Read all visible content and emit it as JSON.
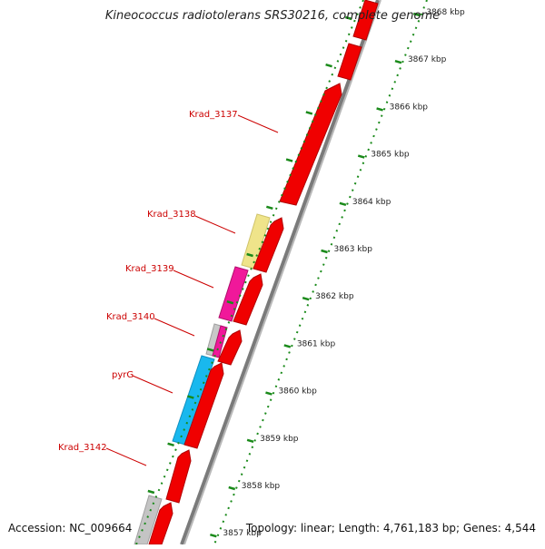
{
  "title": "Kineococcus radiotolerans SRS30216, complete genome",
  "footer": {
    "accession": "Accession: NC_009664",
    "summary": "Topology: linear; Length: 4,761,183 bp; Genes: 4,544"
  },
  "scale_unit": "kbp",
  "ruler_ticks": [
    "3868 kbp",
    "3867 kbp",
    "3866 kbp",
    "3865 kbp",
    "3864 kbp",
    "3863 kbp",
    "3862 kbp",
    "3861 kbp",
    "3860 kbp",
    "3859 kbp",
    "3858 kbp",
    "3857 kbp"
  ],
  "gene_labels": [
    "Krad_3137",
    "Krad_3138",
    "Krad_3139",
    "Krad_3140",
    "pyrG",
    "Krad_3142"
  ],
  "colors": {
    "cds_forward": "#ff0000",
    "krad_3138": "#f0e68c",
    "krad_3139": "#ff1493",
    "krad_3140": "#ff1493",
    "pyrG": "#00bfff",
    "hypothetical": "#c0c0c0",
    "label": "#cc0000",
    "ruler": "#008000",
    "backbone": "#808080"
  }
}
